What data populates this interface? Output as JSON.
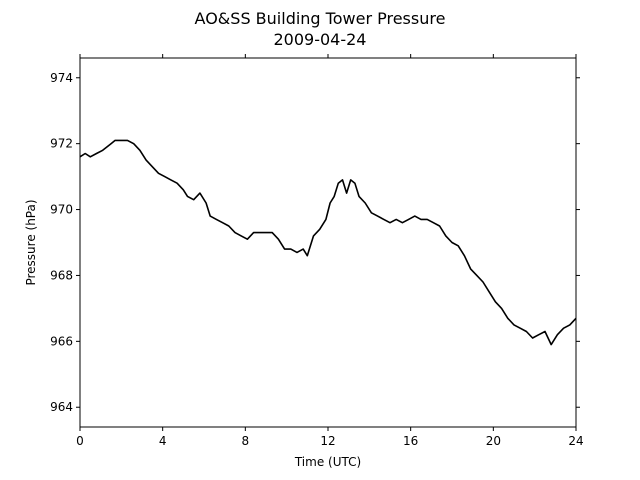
{
  "chart_data": {
    "type": "line",
    "title": "AO&SS Building Tower Pressure",
    "subtitle": "2009-04-24",
    "xlabel": "Time (UTC)",
    "ylabel": "Pressure (hPa)",
    "xlim": [
      0,
      24
    ],
    "ylim": [
      963.4,
      974.6
    ],
    "xticks": [
      0,
      4,
      8,
      12,
      16,
      20,
      24
    ],
    "xtick_labels": [
      "0",
      "4",
      "8",
      "12",
      "16",
      "20",
      "24"
    ],
    "yticks": [
      964,
      966,
      968,
      970,
      972,
      974
    ],
    "ytick_labels": [
      "964",
      "966",
      "968",
      "970",
      "972",
      "974"
    ],
    "grid": false,
    "line_color": "#000000",
    "series": [
      {
        "x": [
          0,
          0.25,
          0.5,
          0.8,
          1.1,
          1.5,
          1.7,
          2.0,
          2.3,
          2.6,
          2.9,
          3.2,
          3.5,
          3.8,
          4.1,
          4.4,
          4.7,
          5.0,
          5.2,
          5.5,
          5.8,
          6.1,
          6.3,
          6.6,
          6.9,
          7.2,
          7.5,
          7.8,
          8.1,
          8.4,
          8.7,
          9.0,
          9.3,
          9.6,
          9.9,
          10.2,
          10.5,
          10.8,
          11.0,
          11.3,
          11.6,
          11.9,
          12.1,
          12.3,
          12.5,
          12.7,
          12.9,
          13.1,
          13.3,
          13.5,
          13.8,
          14.1,
          14.4,
          14.7,
          15.0,
          15.3,
          15.6,
          15.9,
          16.2,
          16.5,
          16.8,
          17.1,
          17.4,
          17.7,
          18.0,
          18.3,
          18.6,
          18.9,
          19.2,
          19.5,
          19.8,
          20.1,
          20.4,
          20.7,
          21.0,
          21.3,
          21.6,
          21.9,
          22.2,
          22.5,
          22.8,
          23.1,
          23.4,
          23.7,
          24.0
        ],
        "y": [
          971.6,
          971.7,
          971.6,
          971.7,
          971.8,
          972.0,
          972.1,
          972.1,
          972.1,
          972.0,
          971.8,
          971.5,
          971.3,
          971.1,
          971.0,
          970.9,
          970.8,
          970.6,
          970.4,
          970.3,
          970.5,
          970.2,
          969.8,
          969.7,
          969.6,
          969.5,
          969.3,
          969.2,
          969.1,
          969.3,
          969.3,
          969.3,
          969.3,
          969.1,
          968.8,
          968.8,
          968.7,
          968.8,
          968.6,
          969.2,
          969.4,
          969.7,
          970.2,
          970.4,
          970.8,
          970.9,
          970.5,
          970.9,
          970.8,
          970.4,
          970.2,
          969.9,
          969.8,
          969.7,
          969.6,
          969.7,
          969.6,
          969.7,
          969.8,
          969.7,
          969.7,
          969.6,
          969.5,
          969.2,
          969.0,
          968.9,
          968.6,
          968.2,
          968.0,
          967.8,
          967.5,
          967.2,
          967.0,
          966.7,
          966.5,
          966.4,
          966.3,
          966.1,
          966.2,
          966.3,
          965.9,
          966.2,
          966.4,
          966.5,
          966.7
        ]
      }
    ]
  }
}
